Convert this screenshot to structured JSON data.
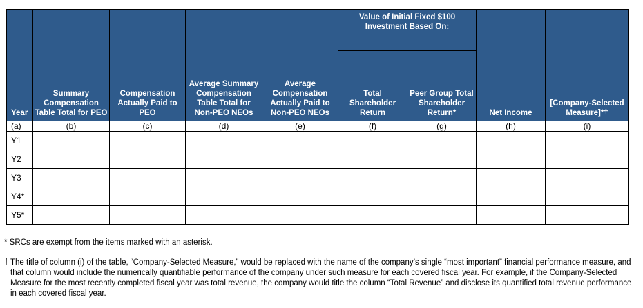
{
  "table": {
    "headers": {
      "year": "Year",
      "b": "Summary Compensation Table Total for PEO",
      "c": "Compensation Actually Paid to PEO",
      "d": "Average Summary Compensation Table Total for Non-PEO NEOs",
      "e": "Average Compensation Actually Paid to Non-PEO NEOs",
      "group": "Value of Initial Fixed $100 Investment Based On:",
      "f": "Total Shareholder Return",
      "g": "Peer Group Total Shareholder Return*",
      "h": "Net Income",
      "i": "[Company-Selected Measure]*†"
    },
    "letters": [
      "(a)",
      "(b)",
      "(c)",
      "(d)",
      "(e)",
      "(f)",
      "(g)",
      "(h)",
      "(i)"
    ],
    "rows": [
      "Y1",
      "Y2",
      "Y3",
      "Y4*",
      "Y5*"
    ]
  },
  "footnotes": {
    "src": "* SRCs are exempt from the items marked with an asterisk.",
    "dagger_mark": "†",
    "dagger_text": "The title of column (i) of the table, “Company-Selected Measure,” would be replaced with the name of the company’s single “most important” financial performance measure, and that column would include the numerically quantifiable performance of the company under such measure for each covered fiscal year. For example, if the Company-Selected Measure for the most recently completed fiscal year was total revenue, the company would title the column “Total Revenue” and disclose its quantified total revenue performance in each covered fiscal year."
  },
  "colors": {
    "header_bg": "#2f5b8c",
    "header_text": "#ffffff",
    "border": "#000000"
  }
}
